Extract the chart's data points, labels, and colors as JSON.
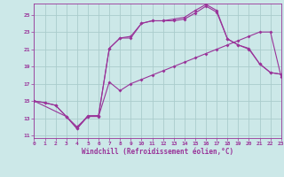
{
  "xlabel": "Windchill (Refroidissement éolien,°C)",
  "bg_color": "#cce8e8",
  "grid_color": "#aacccc",
  "line_color": "#993399",
  "x_min": 0,
  "x_max": 23,
  "y_min": 11,
  "y_max": 26,
  "yticks": [
    11,
    13,
    15,
    17,
    19,
    21,
    23,
    25
  ],
  "xticks": [
    0,
    1,
    2,
    3,
    4,
    5,
    6,
    7,
    8,
    9,
    10,
    11,
    12,
    13,
    14,
    15,
    16,
    17,
    18,
    19,
    20,
    21,
    22,
    23
  ],
  "series": [
    {
      "x": [
        0,
        1,
        2,
        3,
        4,
        5,
        6,
        7,
        8,
        9,
        10,
        11,
        12,
        13,
        14,
        15,
        16,
        17,
        18,
        19,
        20,
        21,
        22,
        23
      ],
      "y": [
        15.0,
        14.8,
        14.5,
        13.2,
        12.0,
        13.2,
        13.2,
        17.2,
        16.2,
        17.0,
        17.5,
        18.0,
        18.5,
        19.0,
        19.5,
        20.0,
        20.5,
        21.0,
        21.5,
        22.0,
        22.5,
        23.0,
        23.0,
        17.8
      ]
    },
    {
      "x": [
        0,
        1,
        2,
        3,
        4,
        5,
        6,
        7,
        8,
        9,
        10,
        11,
        12,
        13,
        14,
        15,
        16,
        17,
        18,
        19,
        20,
        21,
        22,
        23
      ],
      "y": [
        15.0,
        14.8,
        14.5,
        13.2,
        11.8,
        13.2,
        13.3,
        21.1,
        22.3,
        22.3,
        24.0,
        24.3,
        24.3,
        24.3,
        24.5,
        25.2,
        26.0,
        25.3,
        22.2,
        21.5,
        21.0,
        19.3,
        18.3,
        18.1
      ]
    },
    {
      "x": [
        0,
        3,
        4,
        5,
        6,
        7,
        8,
        9,
        10,
        11,
        12,
        13,
        14,
        15,
        16,
        17,
        18,
        19,
        20,
        21,
        22,
        23
      ],
      "y": [
        15.0,
        13.2,
        11.8,
        13.3,
        13.3,
        21.1,
        22.3,
        22.5,
        24.0,
        24.3,
        24.3,
        24.5,
        24.7,
        25.5,
        26.2,
        25.5,
        22.2,
        21.5,
        21.1,
        19.3,
        18.3,
        18.1
      ]
    }
  ]
}
